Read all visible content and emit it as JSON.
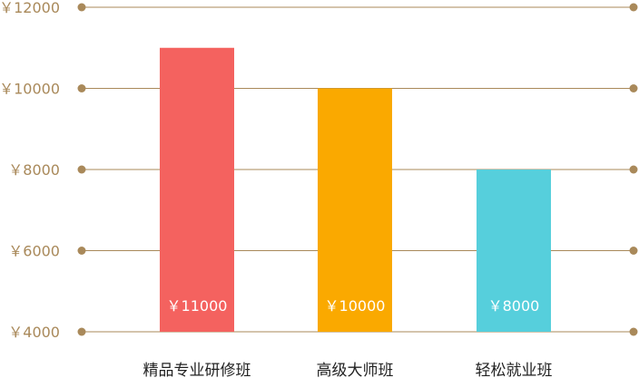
{
  "chart_data": {
    "type": "bar",
    "categories": [
      "精品专业研修班",
      "高级大师班",
      "轻松就业班"
    ],
    "values": [
      11000,
      10000,
      8000
    ],
    "data_labels": [
      "￥11000",
      "￥10000",
      "￥8000"
    ],
    "bar_colors": [
      "#f4625f",
      "#faa900",
      "#56cfdc"
    ],
    "title": "",
    "xlabel": "",
    "ylabel": "",
    "ylim": [
      4000,
      12000
    ],
    "yticks": [
      4000,
      6000,
      8000,
      10000,
      12000
    ],
    "ytick_labels": [
      "￥4000",
      "￥6000",
      "￥8000",
      "￥10000",
      "￥12000"
    ],
    "grid": true,
    "legend": "none",
    "colors": {
      "gridline": "#a9895a",
      "ytick_text": "#a9895a",
      "xtick_text": "#222222",
      "data_label_text": "#ffffff"
    }
  }
}
